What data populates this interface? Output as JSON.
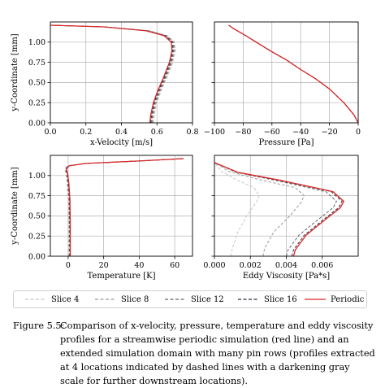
{
  "chart_data": [
    {
      "type": "line",
      "xlabel": "x-Velocity [m/s]",
      "ylabel": "y-Coordinate [mm]",
      "xlim": [
        0.0,
        0.8
      ],
      "ylim": [
        0.0,
        1.25
      ],
      "xticks": [
        "0.0",
        "0.2",
        "0.4",
        "0.6",
        "0.8"
      ],
      "xtick_values": [
        0.0,
        0.2,
        0.4,
        0.6,
        0.8
      ],
      "yticks": [
        "0.00",
        "0.25",
        "0.50",
        "0.75",
        "1.00"
      ],
      "ytick_values": [
        0.0,
        0.25,
        0.5,
        0.75,
        1.0
      ],
      "grid": true,
      "series": [
        {
          "name": "Slice 4",
          "x": [
            0.58,
            0.585,
            0.6,
            0.625,
            0.655,
            0.69,
            0.705,
            0.7,
            0.66,
            0.56,
            0.3,
            0.0
          ],
          "y": [
            0.0,
            0.1,
            0.25,
            0.4,
            0.55,
            0.75,
            0.9,
            1.0,
            1.08,
            1.14,
            1.19,
            1.21
          ]
        },
        {
          "name": "Slice 8",
          "x": [
            0.575,
            0.58,
            0.595,
            0.62,
            0.65,
            0.685,
            0.7,
            0.695,
            0.655,
            0.555,
            0.3,
            0.0
          ],
          "y": [
            0.0,
            0.1,
            0.25,
            0.4,
            0.55,
            0.75,
            0.9,
            1.0,
            1.08,
            1.14,
            1.19,
            1.21
          ]
        },
        {
          "name": "Slice 12",
          "x": [
            0.57,
            0.575,
            0.59,
            0.615,
            0.645,
            0.68,
            0.695,
            0.69,
            0.65,
            0.55,
            0.3,
            0.0
          ],
          "y": [
            0.0,
            0.1,
            0.25,
            0.4,
            0.55,
            0.75,
            0.9,
            1.0,
            1.08,
            1.14,
            1.19,
            1.21
          ]
        },
        {
          "name": "Slice 16",
          "x": [
            0.565,
            0.57,
            0.585,
            0.61,
            0.64,
            0.675,
            0.69,
            0.685,
            0.645,
            0.545,
            0.3,
            0.0
          ],
          "y": [
            0.0,
            0.1,
            0.25,
            0.4,
            0.55,
            0.75,
            0.9,
            1.0,
            1.08,
            1.14,
            1.19,
            1.21
          ]
        },
        {
          "name": "Periodic",
          "x": [
            0.56,
            0.565,
            0.58,
            0.605,
            0.635,
            0.67,
            0.685,
            0.68,
            0.64,
            0.54,
            0.3,
            0.0
          ],
          "y": [
            0.0,
            0.1,
            0.25,
            0.4,
            0.55,
            0.75,
            0.9,
            1.0,
            1.08,
            1.14,
            1.19,
            1.21
          ]
        }
      ]
    },
    {
      "type": "line",
      "xlabel": "Pressure [Pa]",
      "ylabel": "",
      "xlim": [
        -100,
        0
      ],
      "ylim": [
        0.0,
        1.25
      ],
      "xticks": [
        "−100",
        "−80",
        "−60",
        "−40",
        "−20",
        "0"
      ],
      "xtick_values": [
        -100,
        -80,
        -60,
        -40,
        -20,
        0
      ],
      "yticks": [],
      "ytick_values": [
        0.0,
        0.25,
        0.5,
        0.75,
        1.0
      ],
      "grid": true,
      "series": [
        {
          "name": "Slice 4",
          "x": [
            0,
            -3,
            -10,
            -20,
            -30,
            -40,
            -50,
            -60,
            -70,
            -80,
            -87,
            -90
          ],
          "y": [
            0.0,
            0.1,
            0.25,
            0.42,
            0.55,
            0.66,
            0.78,
            0.88,
            0.99,
            1.1,
            1.17,
            1.21
          ]
        },
        {
          "name": "Slice 8",
          "x": [
            0,
            -3,
            -10,
            -20,
            -30,
            -40,
            -50,
            -60,
            -70,
            -80,
            -87,
            -90
          ],
          "y": [
            0.0,
            0.1,
            0.25,
            0.42,
            0.55,
            0.66,
            0.78,
            0.88,
            0.99,
            1.1,
            1.17,
            1.21
          ]
        },
        {
          "name": "Slice 12",
          "x": [
            0,
            -3,
            -10,
            -20,
            -30,
            -40,
            -50,
            -60,
            -70,
            -80,
            -87,
            -90
          ],
          "y": [
            0.0,
            0.1,
            0.25,
            0.42,
            0.55,
            0.66,
            0.78,
            0.88,
            0.99,
            1.1,
            1.17,
            1.21
          ]
        },
        {
          "name": "Slice 16",
          "x": [
            0,
            -3,
            -10,
            -20,
            -30,
            -40,
            -50,
            -60,
            -70,
            -80,
            -87,
            -90
          ],
          "y": [
            0.0,
            0.1,
            0.25,
            0.42,
            0.55,
            0.66,
            0.78,
            0.88,
            0.99,
            1.1,
            1.17,
            1.21
          ]
        },
        {
          "name": "Periodic",
          "x": [
            0,
            -3,
            -10,
            -20,
            -30,
            -40,
            -50,
            -60,
            -70,
            -80,
            -87,
            -90
          ],
          "y": [
            0.0,
            0.1,
            0.25,
            0.42,
            0.55,
            0.66,
            0.78,
            0.88,
            0.99,
            1.1,
            1.17,
            1.21
          ]
        }
      ]
    },
    {
      "type": "line",
      "xlabel": "Temperature [K]",
      "ylabel": "y-Coordinate [mm]",
      "xlim": [
        -10,
        70
      ],
      "ylim": [
        0.0,
        1.25
      ],
      "xticks": [
        "0",
        "20",
        "40",
        "60"
      ],
      "xtick_values": [
        0,
        20,
        40,
        60
      ],
      "yticks": [
        "0.00",
        "0.25",
        "0.50",
        "0.75",
        "1.00"
      ],
      "ytick_values": [
        0.0,
        0.25,
        0.5,
        0.75,
        1.0
      ],
      "grid": true,
      "series": [
        {
          "name": "Slice 4",
          "x": [
            0.2,
            0.2,
            0.0,
            -0.6,
            -1.2,
            -2.0,
            -0.5,
            10,
            40,
            65
          ],
          "y": [
            0.0,
            0.4,
            0.7,
            0.9,
            1.02,
            1.08,
            1.12,
            1.15,
            1.18,
            1.21
          ]
        },
        {
          "name": "Slice 8",
          "x": [
            0.5,
            0.5,
            0.3,
            -0.3,
            -0.9,
            -1.7,
            -0.2,
            10,
            40,
            65
          ],
          "y": [
            0.0,
            0.4,
            0.7,
            0.9,
            1.02,
            1.08,
            1.12,
            1.15,
            1.18,
            1.21
          ]
        },
        {
          "name": "Slice 12",
          "x": [
            0.8,
            0.8,
            0.6,
            0.0,
            -0.6,
            -1.4,
            0.1,
            10,
            40,
            65
          ],
          "y": [
            0.0,
            0.4,
            0.7,
            0.9,
            1.02,
            1.08,
            1.12,
            1.15,
            1.18,
            1.21
          ]
        },
        {
          "name": "Slice 16",
          "x": [
            1.0,
            1.0,
            0.8,
            0.2,
            -0.4,
            -1.2,
            0.3,
            10,
            40,
            65
          ],
          "y": [
            0.0,
            0.4,
            0.7,
            0.9,
            1.02,
            1.08,
            1.12,
            1.15,
            1.18,
            1.21
          ]
        },
        {
          "name": "Periodic",
          "x": [
            1.2,
            1.2,
            1.0,
            0.4,
            -0.2,
            -1.0,
            0.5,
            10,
            40,
            65
          ],
          "y": [
            0.0,
            0.4,
            0.7,
            0.9,
            1.02,
            1.08,
            1.12,
            1.15,
            1.18,
            1.21
          ]
        }
      ]
    },
    {
      "type": "line",
      "xlabel": "Eddy Viscosity [Pa*s]",
      "ylabel": "",
      "xlim": [
        0.0,
        0.008
      ],
      "ylim": [
        0.0,
        1.25
      ],
      "xticks": [
        "0.000",
        "0.002",
        "0.004",
        "0.006"
      ],
      "xtick_values": [
        0.0,
        0.002,
        0.004,
        0.006
      ],
      "yticks": [],
      "ytick_values": [
        0.0,
        0.25,
        0.5,
        0.75,
        1.0
      ],
      "grid": true,
      "series": [
        {
          "name": "Slice 4",
          "x": [
            0.0009,
            0.001,
            0.0013,
            0.0018,
            0.0023,
            0.0025,
            0.0022,
            0.0012,
            0.0004,
            0.0
          ],
          "y": [
            0.0,
            0.1,
            0.3,
            0.5,
            0.66,
            0.75,
            0.85,
            0.95,
            1.05,
            1.16
          ]
        },
        {
          "name": "Slice 8",
          "x": [
            0.0027,
            0.0028,
            0.0033,
            0.0042,
            0.0048,
            0.005,
            0.0045,
            0.0025,
            0.0008,
            0.0
          ],
          "y": [
            0.0,
            0.1,
            0.3,
            0.5,
            0.66,
            0.75,
            0.85,
            0.95,
            1.05,
            1.16
          ]
        },
        {
          "name": "Slice 12",
          "x": [
            0.004,
            0.0041,
            0.0047,
            0.0058,
            0.0066,
            0.0068,
            0.0062,
            0.0036,
            0.0012,
            0.0
          ],
          "y": [
            0.0,
            0.08,
            0.26,
            0.46,
            0.6,
            0.68,
            0.8,
            0.93,
            1.04,
            1.16
          ]
        },
        {
          "name": "Slice 16",
          "x": [
            0.0043,
            0.0044,
            0.005,
            0.0061,
            0.0069,
            0.0071,
            0.0065,
            0.0038,
            0.0013,
            0.0
          ],
          "y": [
            0.0,
            0.08,
            0.26,
            0.46,
            0.6,
            0.68,
            0.8,
            0.93,
            1.04,
            1.16
          ]
        },
        {
          "name": "Periodic",
          "x": [
            0.0044,
            0.0045,
            0.0051,
            0.0062,
            0.007,
            0.0072,
            0.0066,
            0.0039,
            0.0013,
            0.0
          ],
          "y": [
            0.0,
            0.08,
            0.26,
            0.46,
            0.6,
            0.68,
            0.8,
            0.93,
            1.04,
            1.16
          ]
        }
      ]
    }
  ],
  "legend": {
    "items": [
      {
        "label": "Slice 4",
        "color": "#c8c8c8",
        "dash": "dashed"
      },
      {
        "label": "Slice 8",
        "color": "#9a9a9a",
        "dash": "dashed"
      },
      {
        "label": "Slice 12",
        "color": "#666666",
        "dash": "dashed"
      },
      {
        "label": "Slice 16",
        "color": "#2c2c3e",
        "dash": "dashed"
      },
      {
        "label": "Periodic",
        "color": "#d62728",
        "dash": "solid"
      }
    ]
  },
  "caption": {
    "label": "Figure 5.5:",
    "text": "Comparison of x-velocity, pressure, temperature and eddy viscosity profiles for a streamwise periodic simulation (red line) and an extended simulation domain with many pin rows (profiles extracted at 4 locations indicated by dashed lines with a darkening gray scale for further downstream locations)."
  }
}
